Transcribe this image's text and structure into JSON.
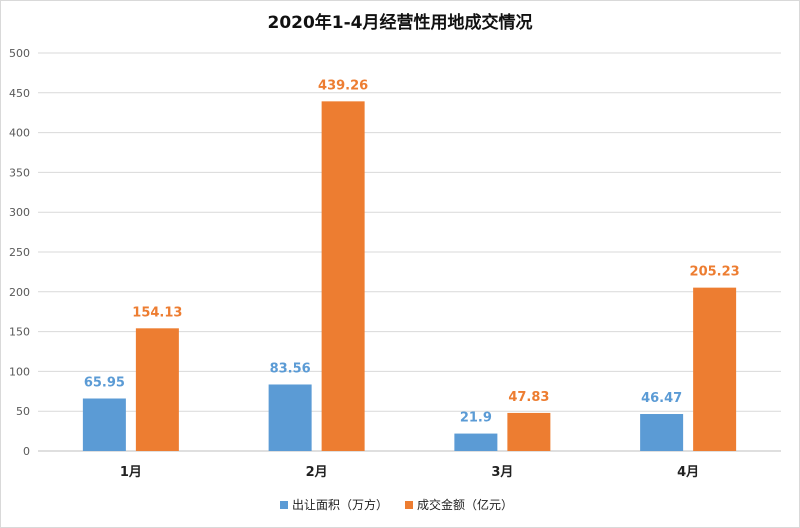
{
  "chart_data": {
    "type": "bar",
    "title": "2020年1-4月经营性用地成交情况",
    "categories": [
      "1月",
      "2月",
      "3月",
      "4月"
    ],
    "series": [
      {
        "name": "出让面积（万方）",
        "values": [
          65.95,
          83.56,
          21.9,
          46.47
        ],
        "labels": [
          "65.95",
          "83.56",
          "21.9",
          "46.47"
        ],
        "color": "#5b9bd5"
      },
      {
        "name": "成交金额（亿元）",
        "values": [
          154.13,
          439.26,
          47.83,
          205.23
        ],
        "labels": [
          "154.13",
          "439.26",
          "47.83",
          "205.23"
        ],
        "color": "#ed7d31"
      }
    ],
    "ylim": [
      0,
      500
    ],
    "yticks": [
      "0",
      "50",
      "100",
      "150",
      "200",
      "250",
      "300",
      "350",
      "400",
      "450",
      "500"
    ],
    "grid": true,
    "legend_position": "bottom"
  }
}
